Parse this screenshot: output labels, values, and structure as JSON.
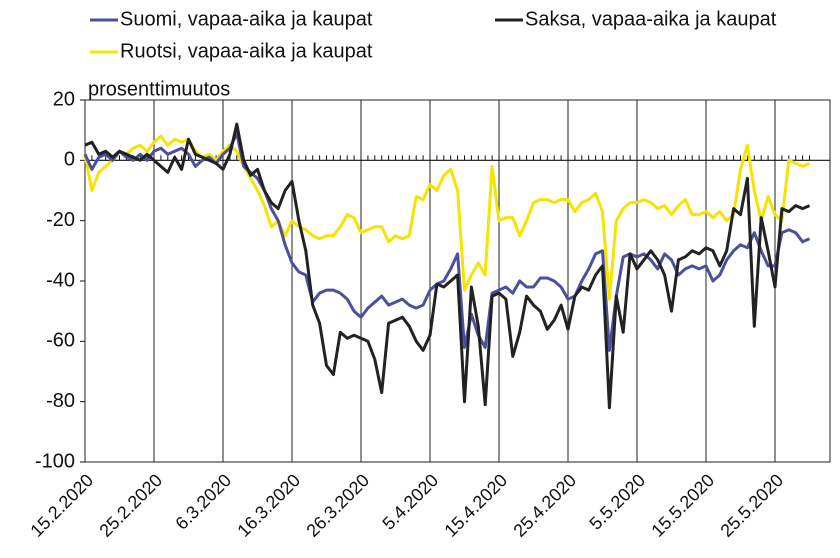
{
  "chart_data": {
    "type": "line",
    "y_label": "prosenttimuutos",
    "categories": [
      "15.2.2020",
      null,
      null,
      null,
      null,
      null,
      null,
      null,
      null,
      null,
      "25.2.2020",
      null,
      null,
      null,
      null,
      null,
      null,
      null,
      null,
      null,
      "6.3.2020",
      null,
      null,
      null,
      null,
      null,
      null,
      null,
      null,
      null,
      "16.3.2020",
      null,
      null,
      null,
      null,
      null,
      null,
      null,
      null,
      null,
      "26.3.2020",
      null,
      null,
      null,
      null,
      null,
      null,
      null,
      null,
      null,
      "5.4.2020",
      null,
      null,
      null,
      null,
      null,
      null,
      null,
      null,
      null,
      "15.4.2020",
      null,
      null,
      null,
      null,
      null,
      null,
      null,
      null,
      null,
      "25.4.2020",
      null,
      null,
      null,
      null,
      null,
      null,
      null,
      null,
      null,
      "5.5.2020",
      null,
      null,
      null,
      null,
      null,
      null,
      null,
      null,
      null,
      "15.5.2020",
      null,
      null,
      null,
      null,
      null,
      null,
      null,
      null,
      null,
      "25.5.2020",
      null,
      null,
      null,
      null,
      null
    ],
    "series": [
      {
        "name": "Suomi, vapaa-aika ja kaupat",
        "color": "#4b4f9e",
        "values": [
          2,
          -3,
          1,
          2,
          0,
          3,
          1,
          0,
          2,
          0,
          3,
          4,
          2,
          3,
          4,
          2,
          -2,
          0,
          1,
          -1,
          2,
          4,
          9,
          -2,
          -4,
          -6,
          -10,
          -16,
          -20,
          -28,
          -34,
          -37,
          -38,
          -47,
          -44,
          -43,
          -43,
          -44,
          -46,
          -50,
          -52,
          -49,
          -47,
          -45,
          -48,
          -47,
          -46,
          -48,
          -49,
          -48,
          -43,
          -41,
          -40,
          -36,
          -31,
          -62,
          -51,
          -58,
          -62,
          -44,
          -43,
          -42,
          -44,
          -40,
          -42,
          -42,
          -39,
          -39,
          -40,
          -42,
          -46,
          -45,
          -40,
          -36,
          -31,
          -30,
          -63,
          -45,
          -32,
          -31,
          -32,
          -31,
          -33,
          -36,
          -31,
          -33,
          -38,
          -36,
          -35,
          -36,
          -35,
          -40,
          -38,
          -33,
          -30,
          -28,
          -29,
          -24,
          -30,
          -35,
          -35,
          -24,
          -23,
          -24,
          -27,
          -26
        ]
      },
      {
        "name": "Saksa, vapaa-aika ja kaupat",
        "color": "#222222",
        "values": [
          5,
          6,
          2,
          3,
          1,
          3,
          2,
          1,
          0,
          2,
          0,
          -2,
          -4,
          1,
          -3,
          7,
          2,
          1,
          0,
          -1,
          -3,
          2,
          12,
          0,
          -5,
          -3,
          -10,
          -14,
          -16,
          -10,
          -7,
          -20,
          -30,
          -48,
          -54,
          -68,
          -71,
          -57,
          -59,
          -58,
          -59,
          -60,
          -66,
          -77,
          -54,
          -53,
          -52,
          -55,
          -60,
          -63,
          -58,
          -41,
          -42,
          -40,
          -38,
          -80,
          -42,
          -55,
          -81,
          -45,
          -44,
          -46,
          -65,
          -57,
          -45,
          -48,
          -50,
          -56,
          -53,
          -48,
          -56,
          -45,
          -42,
          -43,
          -38,
          -35,
          -82,
          -45,
          -57,
          -31,
          -36,
          -33,
          -30,
          -33,
          -38,
          -50,
          -33,
          -32,
          -30,
          -31,
          -29,
          -30,
          -35,
          -30,
          -16,
          -18,
          -6,
          -55,
          -19,
          -30,
          -42,
          -16,
          -17,
          -15,
          -16,
          -15
        ]
      },
      {
        "name": "Ruotsi, vapaa-aika ja kaupat",
        "color": "#f5e400",
        "values": [
          2,
          -10,
          -4,
          -2,
          0,
          3,
          2,
          4,
          5,
          3,
          6,
          8,
          5,
          7,
          6,
          7,
          3,
          1,
          2,
          0,
          3,
          5,
          3,
          -2,
          -6,
          -10,
          -15,
          -22,
          -20,
          -25,
          -20,
          -22,
          -23,
          -25,
          -26,
          -25,
          -25,
          -22,
          -18,
          -19,
          -24,
          -23,
          -22,
          -22,
          -27,
          -25,
          -26,
          -25,
          -12,
          -13,
          -8,
          -10,
          -5,
          -3,
          -10,
          -43,
          -38,
          -34,
          -38,
          -2,
          -20,
          -19,
          -19,
          -25,
          -20,
          -14,
          -13,
          -13,
          -14,
          -13,
          -13,
          -17,
          -14,
          -13,
          -11,
          -17,
          -46,
          -20,
          -16,
          -14,
          -14,
          -13,
          -14,
          -16,
          -15,
          -18,
          -15,
          -13,
          -18,
          -18,
          -17,
          -19,
          -17,
          -20,
          -18,
          -3,
          5,
          -10,
          -20,
          -12,
          -18,
          -20,
          0,
          -1,
          -2,
          -1
        ]
      }
    ],
    "ylim": [
      -100,
      20
    ],
    "yticks": [
      20,
      0,
      -20,
      -40,
      -60,
      -80,
      -100
    ],
    "grid": true
  }
}
